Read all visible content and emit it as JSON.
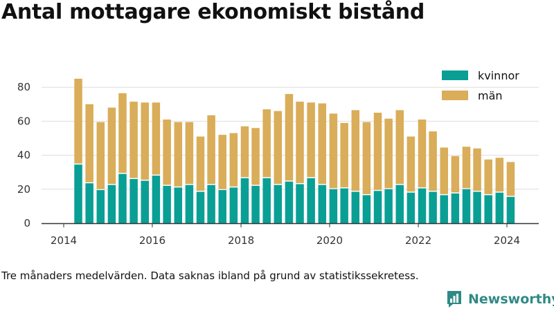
{
  "title": "Antal mottagare ekonomiskt bistånd",
  "note": "Tre månaders medelvärden. Data saknas ibland på grund av statistikssekretess.",
  "brand": {
    "name": "Newsworthy"
  },
  "colors": {
    "kvinnor": "#0a9f95",
    "man": "#d9ad59",
    "grid": "#dddddd",
    "axis": "#333333",
    "brand": "#2f8a85"
  },
  "chart_data": {
    "type": "bar",
    "stacked": true,
    "x_axis_type": "date",
    "x_tick_labels": [
      "2014",
      "2016",
      "2018",
      "2020",
      "2022",
      "2024"
    ],
    "y_tick_labels": [
      "0",
      "20",
      "40",
      "60",
      "80"
    ],
    "ylim": [
      0,
      90
    ],
    "grid": true,
    "legend_position": "top-right",
    "x": [
      "2014-05",
      "2014-08",
      "2014-11",
      "2015-02",
      "2015-05",
      "2015-08",
      "2015-11",
      "2016-02",
      "2016-05",
      "2016-08",
      "2016-11",
      "2017-02",
      "2017-05",
      "2017-08",
      "2017-11",
      "2018-02",
      "2018-05",
      "2018-08",
      "2018-11",
      "2019-02",
      "2019-05",
      "2019-08",
      "2019-11",
      "2020-02",
      "2020-05",
      "2020-08",
      "2020-11",
      "2021-02",
      "2021-05",
      "2021-08",
      "2021-11",
      "2022-02",
      "2022-05",
      "2022-08",
      "2022-11",
      "2023-02",
      "2023-05",
      "2023-08",
      "2023-11",
      "2024-02"
    ],
    "series": [
      {
        "name": "kvinnor",
        "values": [
          34.5,
          23.5,
          19.5,
          22.5,
          29,
          26,
          25,
          28,
          22,
          21,
          22.5,
          18.5,
          22.5,
          19.5,
          21,
          26.5,
          22,
          26.5,
          22.5,
          24.5,
          23,
          26.5,
          22.5,
          20,
          20.5,
          18.5,
          16.5,
          19,
          20,
          22.5,
          18,
          20.5,
          18.5,
          16.5,
          17.5,
          20,
          18.5,
          16.5,
          18,
          15.5
        ]
      },
      {
        "name": "män",
        "values": [
          50.5,
          46.5,
          40,
          45.5,
          47.5,
          45.5,
          46,
          43,
          39,
          38.5,
          37,
          32.5,
          41,
          32.5,
          32,
          30.5,
          34,
          40.5,
          43.5,
          51.5,
          48.5,
          44.5,
          48,
          44.5,
          38.5,
          48,
          43,
          46,
          41.5,
          44,
          33,
          40.5,
          35.5,
          28,
          22,
          25,
          25.5,
          21,
          20.5,
          20.5
        ]
      }
    ]
  }
}
